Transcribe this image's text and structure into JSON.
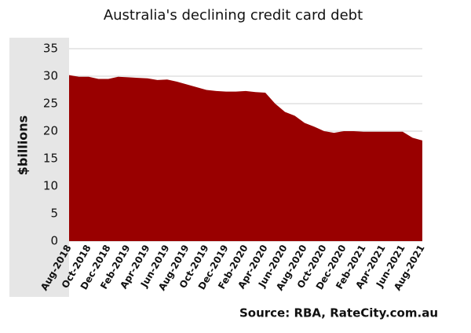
{
  "chart_data": {
    "type": "area",
    "title": "Australia's  declining credit card debt",
    "y_label": "$billions",
    "source": "Source: RBA, RateCity.com.au",
    "categories": [
      "Aug-2018",
      null,
      "Oct-2018",
      null,
      "Dec-2018",
      null,
      "Feb-2019",
      null,
      "Apr-2019",
      null,
      "Jun-2019",
      null,
      "Aug-2019",
      null,
      "Oct-2019",
      null,
      "Dec-2019",
      null,
      "Feb-2020",
      null,
      "Apr-2020",
      null,
      "Jun-2020",
      null,
      "Aug-2020",
      null,
      "Oct-2020",
      null,
      "Dec-2020",
      null,
      "Feb-2021",
      null,
      "Apr-2021",
      null,
      "Jun-2021",
      null,
      "Aug-2021"
    ],
    "values": [
      30.2,
      29.9,
      29.9,
      29.5,
      29.5,
      29.9,
      29.8,
      29.7,
      29.6,
      29.3,
      29.4,
      29.0,
      28.5,
      28.0,
      27.5,
      27.3,
      27.2,
      27.2,
      27.3,
      27.1,
      27.0,
      25.0,
      23.5,
      22.8,
      21.5,
      20.8,
      20.0,
      19.7,
      20.0,
      20.0,
      19.9,
      19.9,
      19.9,
      19.9,
      19.9,
      18.8,
      18.3
    ],
    "color": "#990000",
    "ylim": [
      0,
      35
    ],
    "yticks": [
      0,
      5,
      10,
      15,
      20,
      25,
      30,
      35
    ],
    "grid": true
  }
}
